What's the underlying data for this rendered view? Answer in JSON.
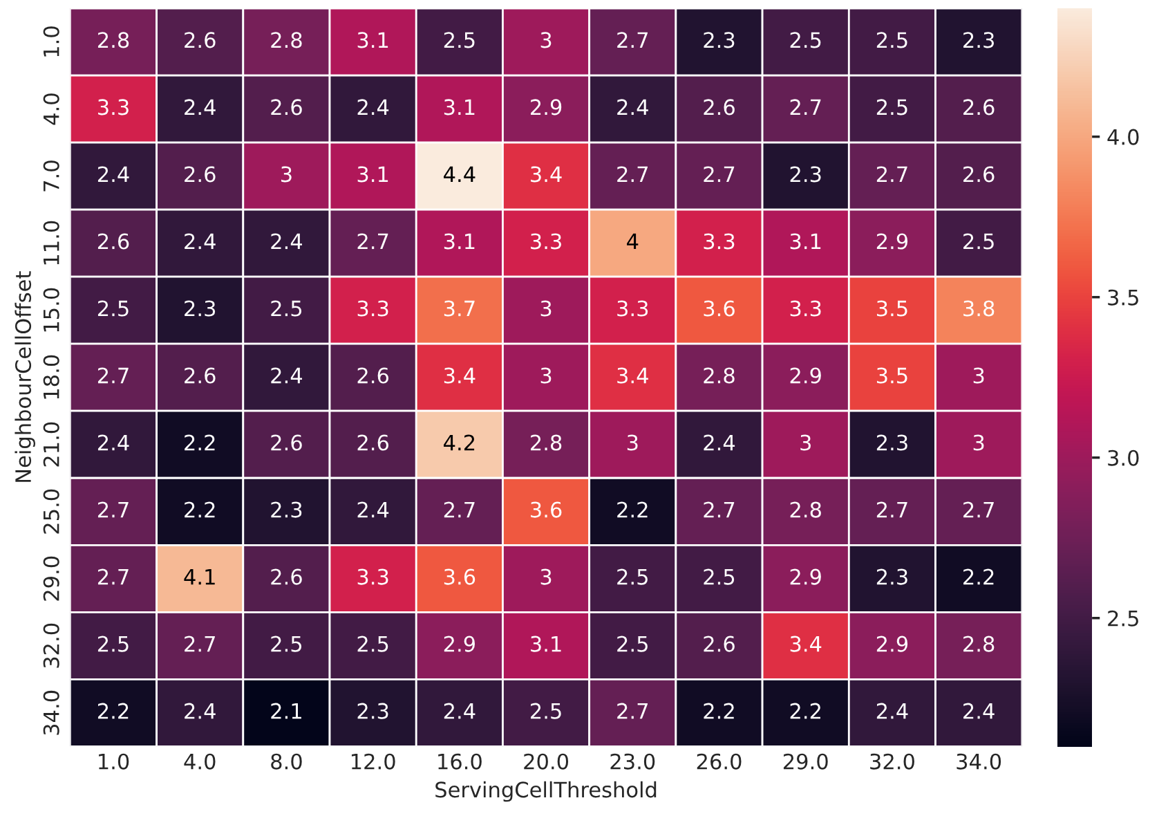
{
  "chart_data": {
    "type": "heatmap",
    "xlabel": "ServingCellThreshold",
    "ylabel": "NeighbourCellOffset",
    "categories": [
      "1.0",
      "4.0",
      "8.0",
      "12.0",
      "16.0",
      "20.0",
      "23.0",
      "26.0",
      "29.0",
      "32.0",
      "34.0"
    ],
    "y_categories": [
      "1.0",
      "4.0",
      "7.0",
      "11.0",
      "15.0",
      "18.0",
      "21.0",
      "25.0",
      "29.0",
      "32.0",
      "34.0"
    ],
    "cells": [
      [
        2.8,
        2.6,
        2.8,
        3.1,
        2.5,
        3,
        2.7,
        2.3,
        2.5,
        2.5,
        2.3
      ],
      [
        3.3,
        2.4,
        2.6,
        2.4,
        3.1,
        2.9,
        2.4,
        2.6,
        2.7,
        2.5,
        2.6
      ],
      [
        2.4,
        2.6,
        3,
        3.1,
        4.4,
        3.4,
        2.7,
        2.7,
        2.3,
        2.7,
        2.6
      ],
      [
        2.6,
        2.4,
        2.4,
        2.7,
        3.1,
        3.3,
        4,
        3.3,
        3.1,
        2.9,
        2.5
      ],
      [
        2.5,
        2.3,
        2.5,
        3.3,
        3.7,
        3,
        3.3,
        3.6,
        3.3,
        3.5,
        3.8
      ],
      [
        2.7,
        2.6,
        2.4,
        2.6,
        3.4,
        3,
        3.4,
        2.8,
        2.9,
        3.5,
        3
      ],
      [
        2.4,
        2.2,
        2.6,
        2.6,
        4.2,
        2.8,
        3,
        2.4,
        3,
        2.3,
        3
      ],
      [
        2.7,
        2.2,
        2.3,
        2.4,
        2.7,
        3.6,
        2.2,
        2.7,
        2.8,
        2.7,
        2.7
      ],
      [
        2.7,
        4.1,
        2.6,
        3.3,
        3.6,
        3,
        2.5,
        2.5,
        2.9,
        2.3,
        2.2
      ],
      [
        2.5,
        2.7,
        2.5,
        2.5,
        2.9,
        3.1,
        2.5,
        2.6,
        3.4,
        2.9,
        2.8
      ],
      [
        2.2,
        2.4,
        2.1,
        2.3,
        2.4,
        2.5,
        2.7,
        2.2,
        2.2,
        2.4,
        2.4
      ]
    ],
    "clim": [
      2.1,
      4.4
    ],
    "cticks": [
      2.5,
      {
        "value": 3,
        "label": "3.0"
      },
      3.5,
      {
        "value": 4,
        "label": "4.0"
      }
    ],
    "data_labels": true
  }
}
